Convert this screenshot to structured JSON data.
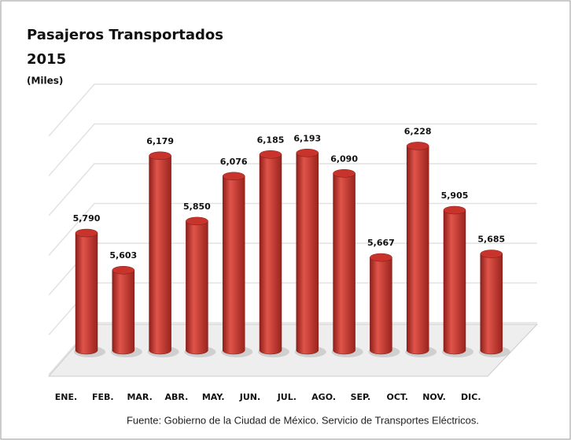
{
  "chart_data": {
    "type": "bar",
    "title": "Pasajeros Transportados",
    "subtitle": "2015",
    "y_label": "(Miles)",
    "source": "Fuente: Gobierno de la Ciudad de México. Servicio de Transportes Eléctricos.",
    "categories": [
      "ENE.",
      "FEB.",
      "MAR.",
      "ABR.",
      "MAY.",
      "JUN.",
      "JUL.",
      "AGO.",
      "SEP.",
      "OCT.",
      "NOV.",
      "DIC."
    ],
    "values": [
      5790,
      5603,
      6179,
      5850,
      6076,
      6185,
      6193,
      6090,
      5667,
      6228,
      5905,
      5685
    ],
    "value_labels": [
      "5,790",
      "5,603",
      "6,179",
      "5,850",
      "6,076",
      "6,185",
      "6,193",
      "6,090",
      "5,667",
      "6,228",
      "5,905",
      "5,685"
    ],
    "color": "#c8342c",
    "ylim": [
      5200,
      6400
    ],
    "yticks": [
      5200,
      5400,
      5600,
      5800,
      6000,
      6200,
      6400
    ],
    "grid": true
  }
}
